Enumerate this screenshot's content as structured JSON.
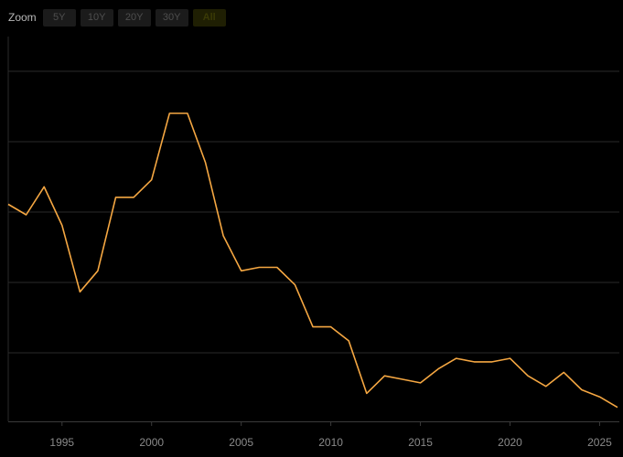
{
  "zoom": {
    "label": "Zoom",
    "buttons": [
      {
        "label": "5Y",
        "active": false
      },
      {
        "label": "10Y",
        "active": false
      },
      {
        "label": "20Y",
        "active": false
      },
      {
        "label": "30Y",
        "active": false
      },
      {
        "label": "All",
        "active": true
      }
    ]
  },
  "colors": {
    "background": "#000000",
    "line": "#f5a742",
    "grid": "#2a2a2a",
    "axis": "#3a3a3a",
    "tick_text": "#8a8a8a"
  },
  "chart_data": {
    "type": "line",
    "title": "",
    "xlabel": "",
    "ylabel": "",
    "xlim": [
      1992,
      2026.1
    ],
    "ylim": [
      0,
      100
    ],
    "grid": true,
    "y_tick_labels_visible": false,
    "x_ticks": [
      "1995",
      "2000",
      "2005",
      "2010",
      "2015",
      "2020",
      "2025"
    ],
    "series": [
      {
        "x": [
          1992,
          1993,
          1994,
          1995,
          1996,
          1997,
          1998,
          1999,
          2000,
          2001,
          2002,
          2003,
          2004,
          2005,
          2006,
          2007,
          2008,
          2009,
          2010,
          2011,
          2012,
          2013,
          2014,
          2015,
          2016,
          2017,
          2018,
          2019,
          2020,
          2021,
          2022,
          2023,
          2024,
          2025,
          2026
        ],
        "y": [
          62,
          59,
          67,
          56,
          37,
          43,
          64,
          64,
          69,
          88,
          88,
          74,
          53,
          43,
          44,
          44,
          39,
          27,
          27,
          23,
          8,
          13,
          12,
          11,
          15,
          18,
          17,
          17,
          18,
          13,
          10,
          14,
          9,
          7,
          4
        ]
      }
    ]
  }
}
